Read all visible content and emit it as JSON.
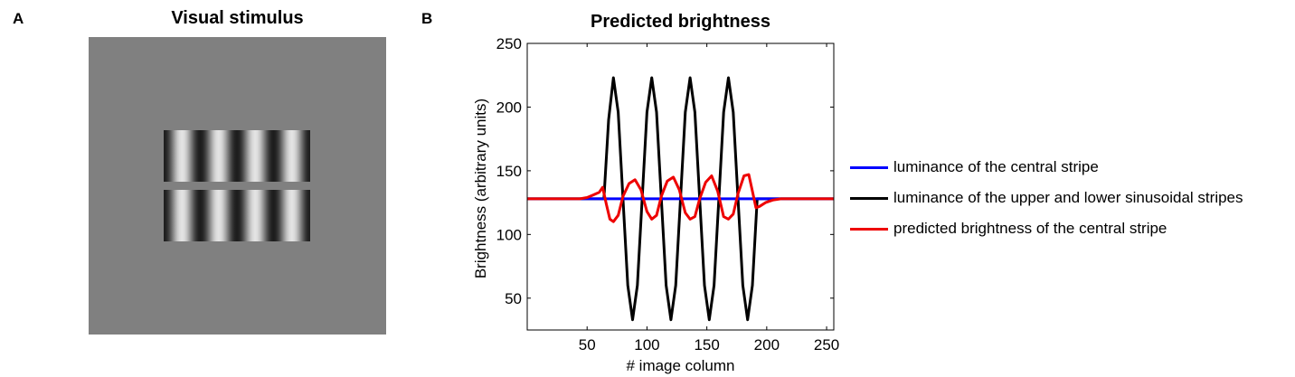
{
  "panel_a": {
    "letter": "A",
    "title": "Visual stimulus",
    "background_gray": "#808080",
    "grating_cycles": 4
  },
  "panel_b": {
    "letter": "B",
    "title": "Predicted brightness"
  },
  "chart_data": {
    "type": "line",
    "title": "Predicted brightness",
    "xlabel": "# image column",
    "ylabel": "Brightness (arbitrary units)",
    "xlim": [
      0,
      256
    ],
    "ylim": [
      25,
      250
    ],
    "xticks": [
      50,
      100,
      150,
      200,
      250
    ],
    "yticks": [
      50,
      100,
      150,
      200,
      250
    ],
    "grid": false,
    "legend_position": "right, outside",
    "series": [
      {
        "name": "luminance of the central stripe",
        "color": "#0000ff",
        "x": [
          0,
          256
        ],
        "y": [
          128,
          128
        ]
      },
      {
        "name": "luminance of the upper and lower sinusoidal stripes",
        "color": "#000000",
        "x": [
          0,
          64,
          68,
          72,
          76,
          80,
          84,
          88,
          92,
          96,
          100,
          104,
          108,
          112,
          116,
          120,
          124,
          128,
          132,
          136,
          140,
          144,
          148,
          152,
          156,
          160,
          164,
          168,
          172,
          176,
          180,
          184,
          188,
          192,
          256
        ],
        "y": [
          128,
          128,
          190,
          223,
          196,
          128,
          60,
          33,
          60,
          128,
          196,
          223,
          196,
          128,
          60,
          33,
          60,
          128,
          196,
          223,
          196,
          128,
          60,
          33,
          60,
          128,
          196,
          223,
          196,
          128,
          60,
          33,
          60,
          128,
          128
        ]
      },
      {
        "name": "predicted brightness of the central stripe",
        "color": "#ee0000",
        "x": [
          0,
          44,
          50,
          55,
          60,
          63,
          66,
          69,
          72,
          76,
          80,
          85,
          90,
          95,
          100,
          104,
          108,
          112,
          117,
          122,
          127,
          132,
          136,
          140,
          144,
          149,
          154,
          159,
          164,
          168,
          172,
          176,
          181,
          185,
          188,
          191,
          194,
          199,
          205,
          212,
          256
        ],
        "y": [
          128,
          128,
          129,
          131,
          133,
          137,
          124,
          112,
          110,
          115,
          130,
          140,
          143,
          135,
          118,
          112,
          115,
          130,
          142,
          145,
          135,
          117,
          112,
          114,
          128,
          141,
          146,
          134,
          114,
          112,
          116,
          132,
          146,
          147,
          134,
          121,
          122,
          125,
          127,
          128,
          128
        ]
      }
    ]
  }
}
